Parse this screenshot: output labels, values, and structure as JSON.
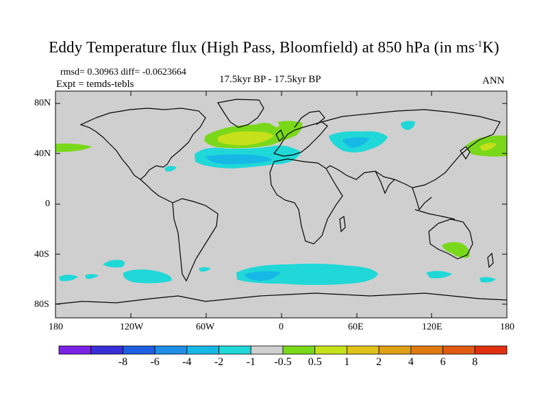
{
  "title": {
    "main": "Eddy Temperature flux (High Pass, Bloomfield) at 850 hPa (in ms",
    "sup": "-1",
    "end": "K)"
  },
  "stats_line": "rmsd= 0.30963  diff= -0.0623664",
  "expt_line": "Expt = temds-tebls",
  "period_line": "17.5kyr BP - 17.5kyr BP",
  "season": "ANN",
  "lat_ticks": [
    "80N",
    "40N",
    "0",
    "40S",
    "80S"
  ],
  "lon_ticks": [
    "180",
    "120W",
    "60W",
    "0",
    "60E",
    "120E",
    "180"
  ],
  "colorbar": {
    "colors": [
      "#7a22e6",
      "#3a2ed8",
      "#1e5ee0",
      "#1e8ee6",
      "#16b8e6",
      "#20d8d8",
      "#cfcfcf",
      "#7ad81a",
      "#c6e01a",
      "#e0c21a",
      "#e0a016",
      "#e07a10",
      "#e05a10",
      "#e03010"
    ],
    "labels": [
      "-8",
      "-6",
      "-4",
      "-2",
      "-1",
      "-0.5",
      "0.5",
      "1",
      "2",
      "4",
      "6",
      "8"
    ]
  },
  "colors": {
    "ocean": "#cfcfcf",
    "coast": "#000000",
    "cyan": "#20d8d8",
    "light_blue": "#16b8e6",
    "green": "#7ad81a",
    "yellow_green": "#c6e01a"
  }
}
